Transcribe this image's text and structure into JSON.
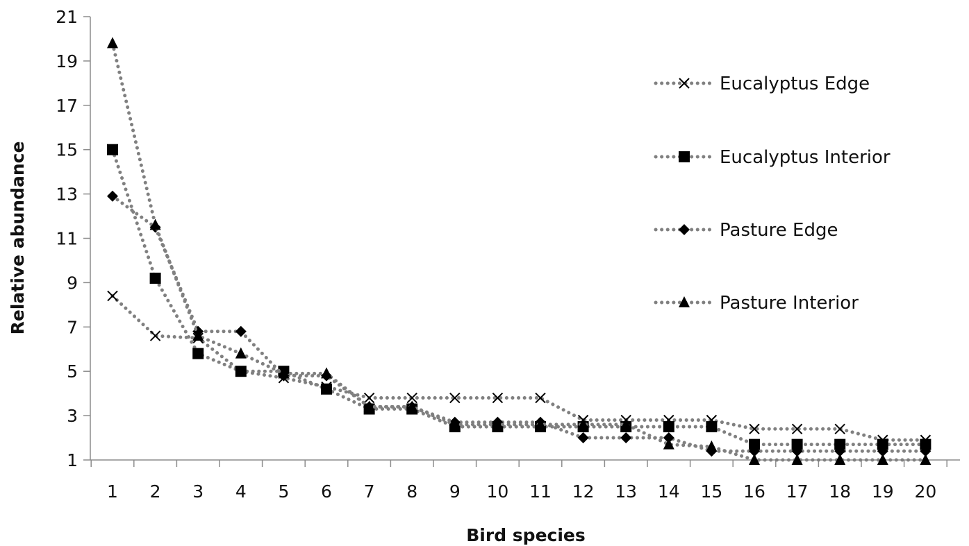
{
  "chart_data": {
    "type": "line",
    "xlabel": "Bird species",
    "ylabel": "Relative abundance",
    "x": [
      "1",
      "2",
      "3",
      "4",
      "5",
      "6",
      "7",
      "8",
      "9",
      "10",
      "11",
      "12",
      "13",
      "14",
      "15",
      "16",
      "17",
      "18",
      "19",
      "20"
    ],
    "yticks": [
      "1",
      "3",
      "5",
      "7",
      "9",
      "11",
      "13",
      "15",
      "17",
      "19",
      "21"
    ],
    "ylim": [
      1,
      21
    ],
    "grid": false,
    "legend_position": "right",
    "line_style": "dotted",
    "series": [
      {
        "name": "Eucalyptus Edge",
        "marker": "x",
        "color": "#808080",
        "values": [
          8.4,
          6.6,
          6.5,
          5.0,
          4.7,
          4.3,
          3.8,
          3.8,
          3.8,
          3.8,
          3.8,
          2.8,
          2.8,
          2.8,
          2.8,
          2.4,
          2.4,
          2.4,
          1.9,
          1.9
        ]
      },
      {
        "name": "Eucalyptus Interior",
        "marker": "square",
        "color": "#808080",
        "values": [
          15.0,
          9.2,
          5.8,
          5.0,
          5.0,
          4.2,
          3.3,
          3.3,
          2.5,
          2.5,
          2.5,
          2.5,
          2.5,
          2.5,
          2.5,
          1.7,
          1.7,
          1.7,
          1.7,
          1.7
        ]
      },
      {
        "name": "Pasture Edge",
        "marker": "diamond",
        "color": "#808080",
        "values": [
          12.9,
          11.5,
          6.8,
          6.8,
          4.8,
          4.8,
          3.4,
          3.4,
          2.7,
          2.7,
          2.7,
          2.0,
          2.0,
          2.0,
          1.4,
          1.4,
          1.4,
          1.4,
          1.4,
          1.4
        ]
      },
      {
        "name": "Pasture Interior",
        "marker": "triangle",
        "color": "#808080",
        "values": [
          19.8,
          11.6,
          6.6,
          5.8,
          4.9,
          4.9,
          3.4,
          3.4,
          2.6,
          2.6,
          2.6,
          2.6,
          2.6,
          1.7,
          1.6,
          1.0,
          1.0,
          1.0,
          1.0,
          1.0
        ]
      }
    ]
  }
}
